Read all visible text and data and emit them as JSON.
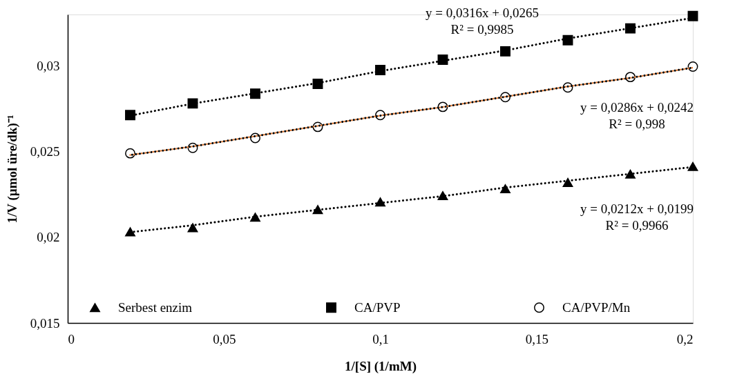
{
  "chart_data": {
    "type": "scatter",
    "xlabel": "1/[S] (1/mM)",
    "ylabel": "1/V (µmol üre/dk)⁻¹",
    "x": [
      0.02,
      0.04,
      0.06,
      0.08,
      0.1,
      0.12,
      0.14,
      0.16,
      0.18,
      0.2
    ],
    "series": [
      {
        "name": "Serbest enzim",
        "marker": "triangle",
        "color": "#000000",
        "values": [
          0.02032,
          0.02056,
          0.02117,
          0.02162,
          0.02206,
          0.02243,
          0.02283,
          0.0232,
          0.02369,
          0.02413
        ]
      },
      {
        "name": "CA/PVP",
        "marker": "square",
        "color": "#000000",
        "values": [
          0.02713,
          0.02781,
          0.02838,
          0.02895,
          0.02976,
          0.03036,
          0.03085,
          0.0315,
          0.03219,
          0.03291
        ]
      },
      {
        "name": "CA/PVP/Mn",
        "marker": "circle",
        "color": "#000000",
        "values": [
          0.0249,
          0.02522,
          0.02579,
          0.02644,
          0.02713,
          0.02761,
          0.02818,
          0.02874,
          0.02935,
          0.02996
        ]
      },
      {
        "type": "line",
        "line_style": "dotted",
        "color": "#000000",
        "values": [
          0.0203,
          0.0207,
          0.0212,
          0.0216,
          0.022,
          0.0224,
          0.0229,
          0.0233,
          0.0237,
          0.0241
        ]
      },
      {
        "type": "line",
        "line_style": "dotted",
        "color": "#000000",
        "values": [
          0.0271,
          0.0278,
          0.0284,
          0.029,
          0.0297,
          0.0303,
          0.0309,
          0.0316,
          0.0322,
          0.0328
        ]
      },
      {
        "type": "line",
        "line_style": "dotted",
        "color": "#ed7d31",
        "values": [
          0.0248,
          0.0253,
          0.0259,
          0.0265,
          0.0271,
          0.0276,
          0.0282,
          0.0288,
          0.0293,
          0.0299
        ]
      },
      {
        "type": "line",
        "line_style": "dotted",
        "color": "#000000",
        "values": [
          0.0248,
          0.0253,
          0.0259,
          0.0265,
          0.0271,
          0.0276,
          0.0282,
          0.0288,
          0.0293,
          0.0299
        ]
      }
    ],
    "xlim": [
      0,
      0.2
    ],
    "xticks": [
      {
        "value": 0,
        "label": "0"
      },
      {
        "value": 0.05,
        "label": "0,05"
      },
      {
        "value": 0.1,
        "label": "0,1"
      },
      {
        "value": 0.15,
        "label": "0,15"
      },
      {
        "value": 0.2,
        "label": "0,2"
      }
    ],
    "ylim": [
      0.015,
      0.033
    ],
    "yticks": [
      {
        "value": 0.015,
        "label": "0,015"
      },
      {
        "value": 0.02,
        "label": "0,02"
      },
      {
        "value": 0.025,
        "label": "0,025"
      },
      {
        "value": 0.03,
        "label": "0,03"
      }
    ],
    "annotations": [
      "y = 0,0316x + 0,0265\nR² = 0,9985",
      "y = 0,0286x + 0,0242\nR² = 0,998",
      "y = 0,0212x + 0,0199\nR² = 0,9966"
    ],
    "legend": "bottom",
    "grid": false
  }
}
